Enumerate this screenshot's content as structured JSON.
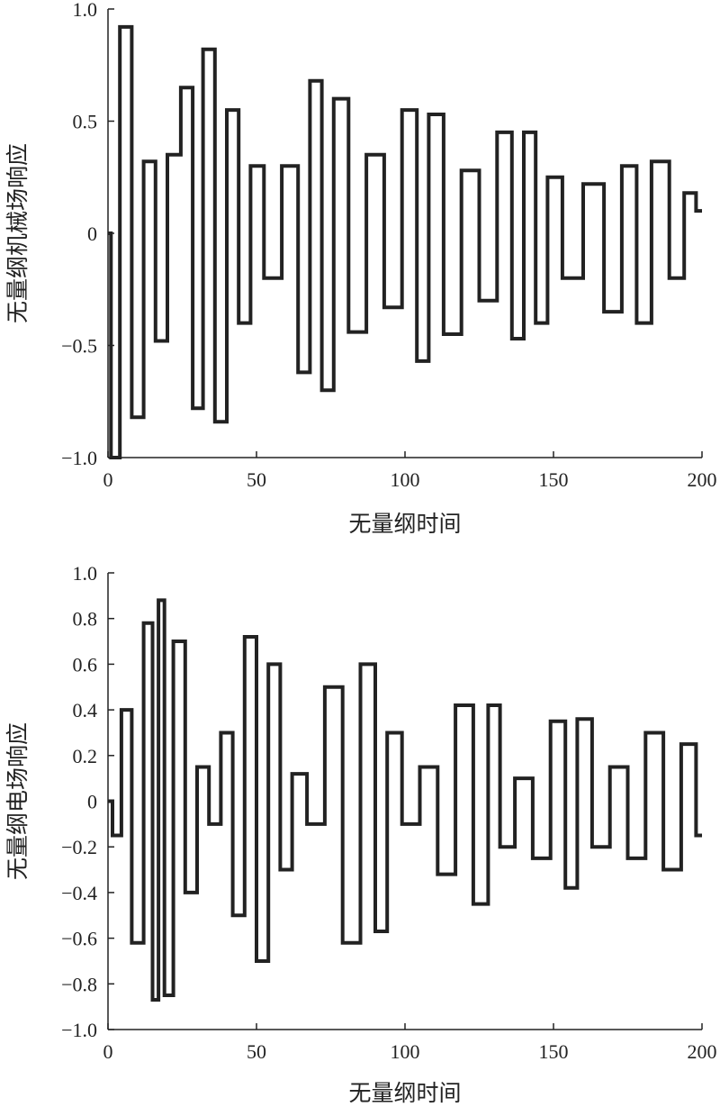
{
  "chart_data": [
    {
      "type": "line",
      "xlabel": "无量纲时间",
      "ylabel": "无量纲机械场响应",
      "xlim": [
        0,
        200
      ],
      "ylim": [
        -1.0,
        1.0
      ],
      "x_ticks": [
        0,
        50,
        100,
        150,
        200
      ],
      "x_tick_labels": [
        "0",
        "50",
        "100",
        "150",
        "200"
      ],
      "y_ticks": [
        -1.0,
        -0.5,
        0,
        0.5,
        1.0
      ],
      "y_tick_labels": [
        "−1.0",
        "−0.5",
        "0",
        "0.5",
        "1.0"
      ],
      "grid": false,
      "legend": "none",
      "line_color": "#222222",
      "series": [
        {
          "x": [
            0,
            2,
            6,
            10,
            14,
            18,
            22,
            27,
            30,
            34,
            38,
            42,
            46,
            50,
            55,
            62,
            66,
            70,
            74,
            78,
            84,
            90,
            96,
            102,
            106,
            110,
            116,
            122,
            128,
            134,
            138,
            142,
            146,
            150,
            156,
            164,
            170,
            176,
            180,
            186,
            192,
            196,
            200
          ],
          "y": [
            0,
            -1.0,
            0.92,
            -0.82,
            0.32,
            -0.48,
            0.35,
            0.65,
            -0.78,
            0.82,
            -0.84,
            0.55,
            -0.4,
            0.3,
            -0.2,
            0.3,
            -0.62,
            0.68,
            -0.7,
            0.6,
            -0.44,
            0.35,
            -0.33,
            0.55,
            -0.57,
            0.53,
            -0.45,
            0.28,
            -0.3,
            0.45,
            -0.47,
            0.45,
            -0.4,
            0.25,
            -0.2,
            0.22,
            -0.35,
            0.3,
            -0.4,
            0.32,
            -0.2,
            0.18,
            0.1
          ]
        }
      ]
    },
    {
      "type": "line",
      "xlabel": "无量纲时间",
      "ylabel": "无量纲电场响应",
      "xlim": [
        0,
        200
      ],
      "ylim": [
        -1.0,
        1.0
      ],
      "x_ticks": [
        0,
        50,
        100,
        150,
        200
      ],
      "x_tick_labels": [
        "0",
        "50",
        "100",
        "150",
        "200"
      ],
      "y_ticks": [
        -1.0,
        -0.8,
        -0.6,
        -0.4,
        -0.2,
        0,
        0.2,
        0.4,
        0.6,
        0.8,
        1.0
      ],
      "y_tick_labels": [
        "−1.0",
        "−0.8",
        "−0.6",
        "−0.4",
        "−0.2",
        "0",
        "0.2",
        "0.4",
        "0.6",
        "0.8",
        "1.0"
      ],
      "grid": false,
      "legend": "none",
      "line_color": "#222222",
      "series": [
        {
          "x": [
            0,
            3,
            6,
            10,
            14,
            16,
            18,
            20,
            24,
            28,
            32,
            36,
            40,
            44,
            48,
            52,
            56,
            60,
            64,
            70,
            76,
            82,
            88,
            92,
            96,
            102,
            108,
            114,
            120,
            126,
            130,
            134,
            140,
            146,
            152,
            156,
            160,
            166,
            172,
            178,
            184,
            190,
            196,
            200
          ],
          "y": [
            0,
            -0.15,
            0.4,
            -0.62,
            0.78,
            -0.87,
            0.88,
            -0.85,
            0.7,
            -0.4,
            0.15,
            -0.1,
            0.3,
            -0.5,
            0.72,
            -0.7,
            0.6,
            -0.3,
            0.12,
            -0.1,
            0.5,
            -0.62,
            0.6,
            -0.57,
            0.3,
            -0.1,
            0.15,
            -0.32,
            0.42,
            -0.45,
            0.42,
            -0.2,
            0.1,
            -0.25,
            0.35,
            -0.38,
            0.36,
            -0.2,
            0.15,
            -0.25,
            0.3,
            -0.3,
            0.25,
            -0.15
          ]
        }
      ]
    }
  ]
}
